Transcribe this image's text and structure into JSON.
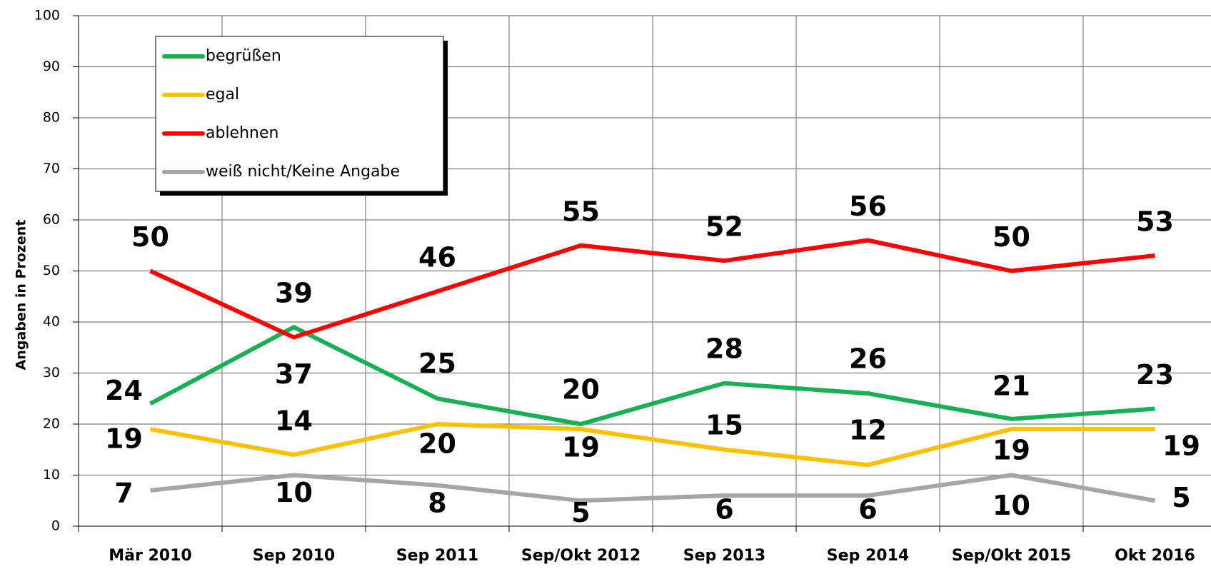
{
  "chart_data": {
    "type": "line",
    "y_label": "Angaben in Prozent",
    "categories": [
      "Mär 2010",
      "Sep 2010",
      "Sep 2011",
      "Sep/Okt 2012",
      "Sep 2013",
      "Sep 2014",
      "Sep/Okt 2015",
      "Okt 2016"
    ],
    "series": [
      {
        "name": "begrüßen",
        "color": "#1aaf54",
        "values": [
          24,
          39,
          25,
          20,
          28,
          26,
          21,
          23
        ]
      },
      {
        "name": "egal",
        "color": "#ffc000",
        "values": [
          19,
          14,
          20,
          19,
          15,
          12,
          19,
          19
        ]
      },
      {
        "name": "ablehnen",
        "color": "#ff0000",
        "values": [
          50,
          37,
          46,
          55,
          52,
          56,
          50,
          53
        ]
      },
      {
        "name": "weiß nicht/Keine Angabe",
        "color": "#a6a6a6",
        "values": [
          7,
          10,
          8,
          5,
          6,
          6,
          10,
          5
        ]
      }
    ],
    "ylim": [
      0,
      100
    ],
    "yticks": [
      0,
      10,
      20,
      30,
      40,
      50,
      60,
      70,
      80,
      90,
      100
    ],
    "grid": true
  }
}
